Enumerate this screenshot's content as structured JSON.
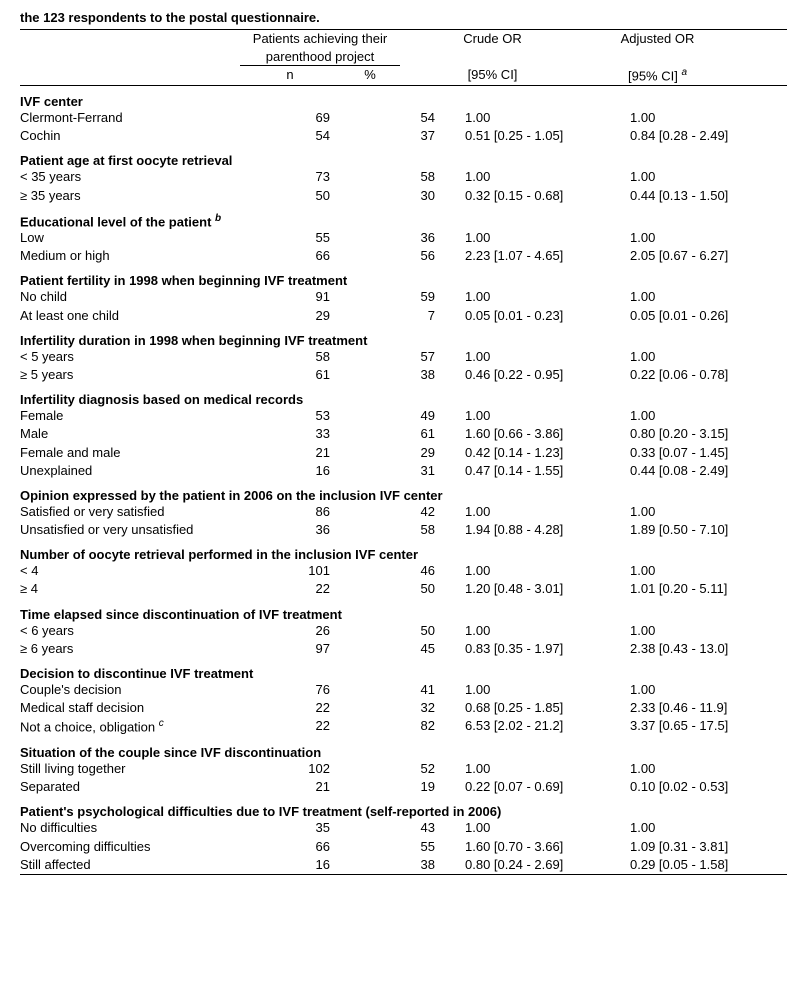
{
  "title": "the 123 respondents to the postal questionnaire.",
  "headers": {
    "patients_span": "Patients achieving their parenthood project",
    "n": "n",
    "pct": "%",
    "crude": "Crude OR",
    "crude_ci": "[95% CI]",
    "adj": "Adjusted OR",
    "adj_ci": "[95% CI] ",
    "adj_sup": "a"
  },
  "sections": [
    {
      "title": "IVF center",
      "rows": [
        {
          "label": "Clermont-Ferrand",
          "n": "69",
          "pct": "54",
          "crude": "1.00",
          "adj": "1.00"
        },
        {
          "label": "Cochin",
          "n": "54",
          "pct": "37",
          "crude": "0.51 [0.25 - 1.05]",
          "adj": "0.84 [0.28 - 2.49]"
        }
      ]
    },
    {
      "title": "Patient age at first oocyte retrieval",
      "rows": [
        {
          "label": "< 35 years",
          "n": "73",
          "pct": "58",
          "crude": "1.00",
          "adj": "1.00"
        },
        {
          "label": "≥ 35 years",
          "n": "50",
          "pct": "30",
          "crude": "0.32 [0.15 - 0.68]",
          "adj": "0.44 [0.13 - 1.50]"
        }
      ]
    },
    {
      "title": "Educational level of the patient ",
      "sup": "b",
      "rows": [
        {
          "label": "Low",
          "n": "55",
          "pct": "36",
          "crude": "1.00",
          "adj": "1.00"
        },
        {
          "label": "Medium or high",
          "n": "66",
          "pct": "56",
          "crude": "2.23 [1.07 - 4.65]",
          "adj": "2.05 [0.67 - 6.27]"
        }
      ]
    },
    {
      "title": "Patient fertility in 1998 when beginning IVF treatment",
      "rows": [
        {
          "label": "No child",
          "n": "91",
          "pct": "59",
          "crude": "1.00",
          "adj": "1.00"
        },
        {
          "label": "At least one child",
          "n": "29",
          "pct": "7",
          "crude": "0.05 [0.01 - 0.23]",
          "adj": "0.05 [0.01 - 0.26]"
        }
      ]
    },
    {
      "title": "Infertility duration in 1998 when beginning IVF treatment",
      "rows": [
        {
          "label": "< 5 years",
          "n": "58",
          "pct": "57",
          "crude": "1.00",
          "adj": "1.00"
        },
        {
          "label": "≥ 5 years",
          "n": "61",
          "pct": "38",
          "crude": "0.46 [0.22 - 0.95]",
          "adj": "0.22 [0.06 - 0.78]"
        }
      ]
    },
    {
      "title": "Infertility diagnosis based on medical records",
      "rows": [
        {
          "label": "Female",
          "n": "53",
          "pct": "49",
          "crude": "1.00",
          "adj": "1.00"
        },
        {
          "label": "Male",
          "n": "33",
          "pct": "61",
          "crude": "1.60 [0.66 - 3.86]",
          "adj": "0.80 [0.20 - 3.15]"
        },
        {
          "label": "Female and male",
          "n": "21",
          "pct": "29",
          "crude": "0.42 [0.14 - 1.23]",
          "adj": "0.33 [0.07 - 1.45]"
        },
        {
          "label": "Unexplained",
          "n": "16",
          "pct": "31",
          "crude": "0.47 [0.14 - 1.55]",
          "adj": "0.44 [0.08 - 2.49]"
        }
      ]
    },
    {
      "title": "Opinion expressed by the patient in 2006 on the inclusion IVF center",
      "rows": [
        {
          "label": "Satisfied or very satisfied",
          "n": "86",
          "pct": "42",
          "crude": "1.00",
          "adj": "1.00"
        },
        {
          "label": "Unsatisfied or very unsatisfied",
          "n": "36",
          "pct": "58",
          "crude": "1.94 [0.88 - 4.28]",
          "adj": "1.89 [0.50 - 7.10]"
        }
      ]
    },
    {
      "title": "Number of oocyte retrieval performed in the inclusion IVF center",
      "rows": [
        {
          "label": "< 4",
          "n": "101",
          "pct": "46",
          "crude": "1.00",
          "adj": "1.00"
        },
        {
          "label": "≥ 4",
          "n": "22",
          "pct": "50",
          "crude": "1.20 [0.48 - 3.01]",
          "adj": "1.01 [0.20 - 5.11]"
        }
      ]
    },
    {
      "title": "Time elapsed since discontinuation of IVF treatment",
      "rows": [
        {
          "label": "< 6 years",
          "n": "26",
          "pct": "50",
          "crude": "1.00",
          "adj": "1.00"
        },
        {
          "label": "≥ 6 years",
          "n": "97",
          "pct": "45",
          "crude": "0.83 [0.35 - 1.97]",
          "adj": "2.38 [0.43 - 13.0]"
        }
      ]
    },
    {
      "title": "Decision to discontinue IVF treatment",
      "rows": [
        {
          "label": "Couple's decision",
          "n": "76",
          "pct": "41",
          "crude": "1.00",
          "adj": "1.00"
        },
        {
          "label": "Medical staff decision",
          "n": "22",
          "pct": "32",
          "crude": "0.68 [0.25 - 1.85]",
          "adj": "2.33 [0.46 - 11.9]"
        },
        {
          "label": "Not a choice, obligation ",
          "sup": "c",
          "n": "22",
          "pct": "82",
          "crude": "6.53 [2.02 - 21.2]",
          "adj": "3.37 [0.65 - 17.5]"
        }
      ]
    },
    {
      "title": "Situation of the couple since IVF discontinuation",
      "rows": [
        {
          "label": "Still living together",
          "n": "102",
          "pct": "52",
          "crude": "1.00",
          "adj": "1.00"
        },
        {
          "label": "Separated",
          "n": "21",
          "pct": "19",
          "crude": "0.22 [0.07 - 0.69]",
          "adj": "0.10 [0.02 - 0.53]"
        }
      ]
    },
    {
      "title": "Patient's psychological difficulties due to IVF treatment (self-reported in 2006)",
      "rows": [
        {
          "label": "No difficulties",
          "n": "35",
          "pct": "43",
          "crude": "1.00",
          "adj": "1.00"
        },
        {
          "label": "Overcoming difficulties",
          "n": "66",
          "pct": "55",
          "crude": "1.60 [0.70 - 3.66]",
          "adj": "1.09 [0.31 - 3.81]"
        },
        {
          "label": "Still affected",
          "n": "16",
          "pct": "38",
          "crude": "0.80 [0.24 - 2.69]",
          "adj": "0.29 [0.05 - 1.58]"
        }
      ]
    }
  ]
}
